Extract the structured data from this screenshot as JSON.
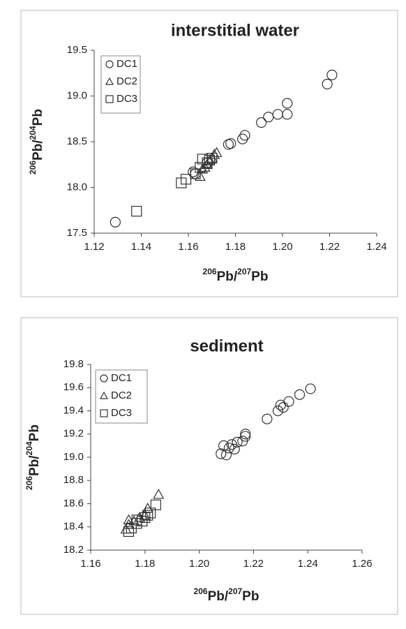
{
  "chart_data": [
    {
      "type": "scatter",
      "title": "interstitial water",
      "x_label": [
        "206",
        "Pb/",
        "207",
        "Pb"
      ],
      "y_label": [
        "206",
        "Pb/",
        "204",
        "Pb"
      ],
      "xlim": [
        1.12,
        1.24
      ],
      "xticks": [
        1.12,
        1.14,
        1.16,
        1.18,
        {
          "value": 1.2,
          "label": "1.20"
        },
        1.22,
        1.24
      ],
      "ylim": [
        17.5,
        19.5
      ],
      "yticks": [
        17.5,
        {
          "value": 18,
          "label": "18.0"
        },
        18.5,
        {
          "value": 19,
          "label": "19.0"
        },
        19.5
      ],
      "legend": "upper left",
      "series": [
        {
          "name": "DC1",
          "marker": "circle",
          "color": "#333333",
          "x": [
            1.129,
            1.162,
            1.163,
            1.168,
            1.177,
            1.178,
            1.183,
            1.184,
            1.191,
            1.194,
            1.198,
            1.202,
            1.202,
            1.219,
            1.221
          ],
          "y": [
            17.62,
            18.17,
            18.15,
            18.27,
            18.47,
            18.48,
            18.53,
            18.57,
            18.71,
            18.77,
            18.8,
            18.8,
            18.92,
            19.13,
            19.23
          ]
        },
        {
          "name": "DC2",
          "marker": "triangle",
          "color": "#333333",
          "x": [
            1.165,
            1.166,
            1.167,
            1.168,
            1.169,
            1.17,
            1.171,
            1.172
          ],
          "y": [
            18.12,
            18.2,
            18.22,
            18.25,
            18.3,
            18.32,
            18.36,
            18.38
          ]
        },
        {
          "name": "DC3",
          "marker": "square",
          "color": "#333333",
          "x": [
            1.138,
            1.157,
            1.159,
            1.163,
            1.165,
            1.166,
            1.168,
            1.169,
            1.17
          ],
          "y": [
            17.74,
            18.05,
            18.09,
            18.15,
            18.22,
            18.31,
            18.27,
            18.3,
            18.32
          ]
        }
      ]
    },
    {
      "type": "scatter",
      "title": "sediment",
      "x_label": [
        "206",
        "Pb/",
        "207",
        "Pb"
      ],
      "y_label": [
        "206",
        "Pb/",
        "204",
        "Pb"
      ],
      "xlim": [
        1.16,
        1.26
      ],
      "xticks": [
        1.16,
        1.18,
        {
          "value": 1.2,
          "label": "1.20"
        },
        1.22,
        1.24,
        1.26
      ],
      "ylim": [
        18.2,
        19.8
      ],
      "yticks": [
        18.2,
        18.4,
        18.6,
        18.8,
        {
          "value": 19,
          "label": "19.0"
        },
        19.2,
        19.4,
        19.6,
        19.8
      ],
      "legend": "upper left",
      "series": [
        {
          "name": "DC1",
          "marker": "circle",
          "color": "#333333",
          "x": [
            1.208,
            1.21,
            1.209,
            1.211,
            1.212,
            1.213,
            1.214,
            1.216,
            1.217,
            1.217,
            1.225,
            1.229,
            1.23,
            1.231,
            1.233,
            1.237,
            1.241
          ],
          "y": [
            19.03,
            19.02,
            19.1,
            19.08,
            19.11,
            19.07,
            19.13,
            19.14,
            19.18,
            19.2,
            19.33,
            19.4,
            19.45,
            19.43,
            19.48,
            19.54,
            19.59
          ]
        },
        {
          "name": "DC2",
          "marker": "triangle",
          "color": "#333333",
          "x": [
            1.173,
            1.174,
            1.174,
            1.176,
            1.178,
            1.18,
            1.181,
            1.185
          ],
          "y": [
            18.38,
            18.42,
            18.46,
            18.45,
            18.48,
            18.5,
            18.56,
            18.68
          ]
        },
        {
          "name": "DC3",
          "marker": "square",
          "color": "#333333",
          "x": [
            1.174,
            1.175,
            1.177,
            1.177,
            1.179,
            1.18,
            1.181,
            1.182,
            1.184
          ],
          "y": [
            18.36,
            18.39,
            18.43,
            18.46,
            18.45,
            18.48,
            18.5,
            18.52,
            18.59
          ]
        }
      ]
    }
  ]
}
